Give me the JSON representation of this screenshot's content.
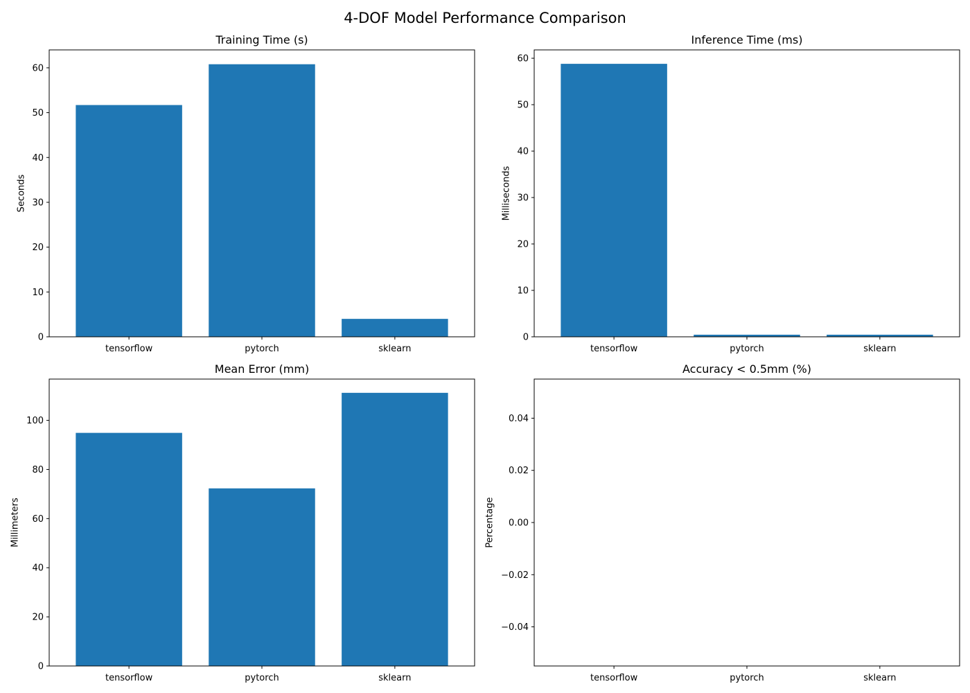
{
  "figure": {
    "title": "4-DOF Model Performance Comparison",
    "bar_color": "#1f77b4"
  },
  "chart_data": [
    {
      "type": "bar",
      "title": "Training Time (s)",
      "xlabel": "",
      "ylabel": "Seconds",
      "categories": [
        "tensorflow",
        "pytorch",
        "sklearn"
      ],
      "values": [
        51.7,
        60.8,
        4.0
      ],
      "ylim": [
        0,
        64
      ],
      "yticks": [
        0,
        10,
        20,
        30,
        40,
        50,
        60
      ],
      "ytick_labels": [
        "0",
        "10",
        "20",
        "30",
        "40",
        "50",
        "60"
      ],
      "grid": false
    },
    {
      "type": "bar",
      "title": "Inference Time (ms)",
      "xlabel": "",
      "ylabel": "Milliseconds",
      "categories": [
        "tensorflow",
        "pytorch",
        "sklearn"
      ],
      "values": [
        58.8,
        0.45,
        0.45
      ],
      "ylim": [
        0,
        61.8
      ],
      "yticks": [
        0,
        10,
        20,
        30,
        40,
        50,
        60
      ],
      "ytick_labels": [
        "0",
        "10",
        "20",
        "30",
        "40",
        "50",
        "60"
      ],
      "grid": false
    },
    {
      "type": "bar",
      "title": "Mean Error (mm)",
      "xlabel": "",
      "ylabel": "Millimeters",
      "categories": [
        "tensorflow",
        "pytorch",
        "sklearn"
      ],
      "values": [
        94.9,
        72.3,
        111.2
      ],
      "ylim": [
        0,
        116.8
      ],
      "yticks": [
        0,
        20,
        40,
        60,
        80,
        100
      ],
      "ytick_labels": [
        "0",
        "20",
        "40",
        "60",
        "80",
        "100"
      ],
      "grid": false
    },
    {
      "type": "bar",
      "title": "Accuracy < 0.5mm (%)",
      "xlabel": "",
      "ylabel": "Percentage",
      "categories": [
        "tensorflow",
        "pytorch",
        "sklearn"
      ],
      "values": [
        0,
        0,
        0
      ],
      "ylim": [
        -0.055,
        0.055
      ],
      "yticks": [
        -0.04,
        -0.02,
        0.0,
        0.02,
        0.04
      ],
      "ytick_labels": [
        "−0.04",
        "−0.02",
        "0.00",
        "0.02",
        "0.04"
      ],
      "grid": false
    }
  ]
}
